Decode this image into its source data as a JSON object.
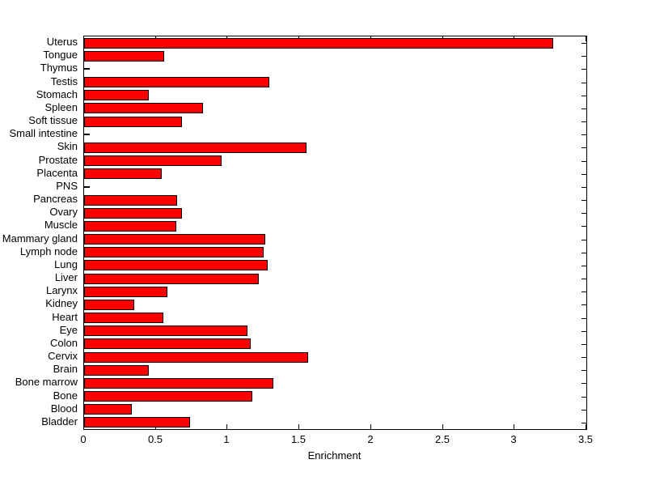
{
  "figure": {
    "background_color": "#ffffff",
    "axis_color": "#000000",
    "text_color": "#000000"
  },
  "chart_data": {
    "type": "bar",
    "orientation": "horizontal",
    "title": "",
    "xlabel": "Enrichment",
    "ylabel": "",
    "xlim": [
      0,
      3.5
    ],
    "x_ticks": [
      0,
      0.5,
      1,
      1.5,
      2,
      2.5,
      3,
      3.5
    ],
    "x_tick_labels": [
      "0",
      "0.5",
      "1",
      "1.5",
      "2",
      "2.5",
      "3",
      "3.5"
    ],
    "grid": false,
    "legend": null,
    "bar_color": "#ff0000",
    "bar_edge_color": "#000000",
    "categories": [
      "Uterus",
      "Tongue",
      "Thymus",
      "Testis",
      "Stomach",
      "Spleen",
      "Soft tissue",
      "Small intestine",
      "Skin",
      "Prostate",
      "Placenta",
      "PNS",
      "Pancreas",
      "Ovary",
      "Muscle",
      "Mammary gland",
      "Lymph node",
      "Lung",
      "Liver",
      "Larynx",
      "Kidney",
      "Heart",
      "Eye",
      "Colon",
      "Cervix",
      "Brain",
      "Bone marrow",
      "Bone",
      "Blood",
      "Bladder"
    ],
    "values": [
      3.27,
      0.56,
      0,
      1.29,
      0.45,
      0.83,
      0.68,
      0,
      1.55,
      0.96,
      0.54,
      0,
      0.65,
      0.68,
      0.64,
      1.26,
      1.25,
      1.28,
      1.22,
      0.58,
      0.35,
      0.55,
      1.14,
      1.16,
      1.56,
      0.45,
      1.32,
      1.17,
      0.33,
      0.74
    ]
  }
}
